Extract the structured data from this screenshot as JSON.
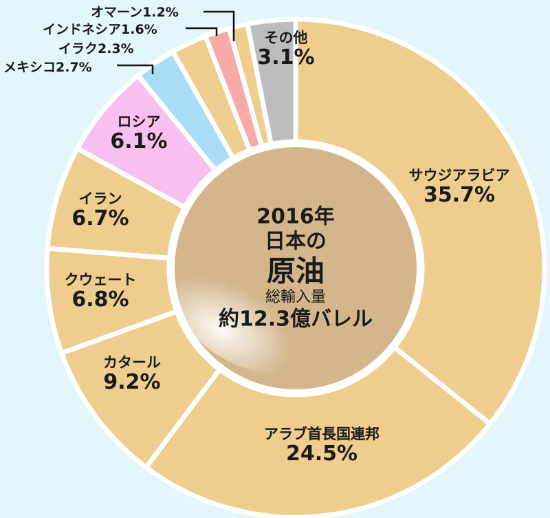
{
  "chart_data": {
    "type": "pie",
    "donut": true,
    "start": "top, clockwise",
    "center_text": {
      "year": "2016年",
      "line2": "日本の",
      "line3": "原油",
      "line4": "総輸入量",
      "line5": "約12.3億バレル"
    },
    "slices": [
      {
        "name": "サウジアラビア",
        "value": 35.7,
        "label": "35.7%",
        "color": "#eecd8e"
      },
      {
        "name": "アラブ首長国連邦",
        "value": 24.5,
        "label": "24.5%",
        "color": "#eecd8e"
      },
      {
        "name": "カタール",
        "value": 9.2,
        "label": "9.2%",
        "color": "#eecd8e"
      },
      {
        "name": "クウェート",
        "value": 6.8,
        "label": "6.8%",
        "color": "#eecd8e"
      },
      {
        "name": "イラン",
        "value": 6.7,
        "label": "6.7%",
        "color": "#eecd8e"
      },
      {
        "name": "ロシア",
        "value": 6.1,
        "label": "6.1%",
        "color": "#f8c0f0"
      },
      {
        "name": "メキシコ",
        "value": 2.7,
        "label": "2.7%",
        "color": "#a9dcf6"
      },
      {
        "name": "イラク",
        "value": 2.3,
        "label": "2.3%",
        "color": "#eecd8e"
      },
      {
        "name": "インドネシア",
        "value": 1.6,
        "label": "1.6%",
        "color": "#f8aaa8"
      },
      {
        "name": "オマーン",
        "value": 1.2,
        "label": "1.2%",
        "color": "#eecd8e"
      },
      {
        "name": "その他",
        "value": 3.1,
        "label": "3.1%",
        "color": "#bdbdbf"
      }
    ]
  }
}
